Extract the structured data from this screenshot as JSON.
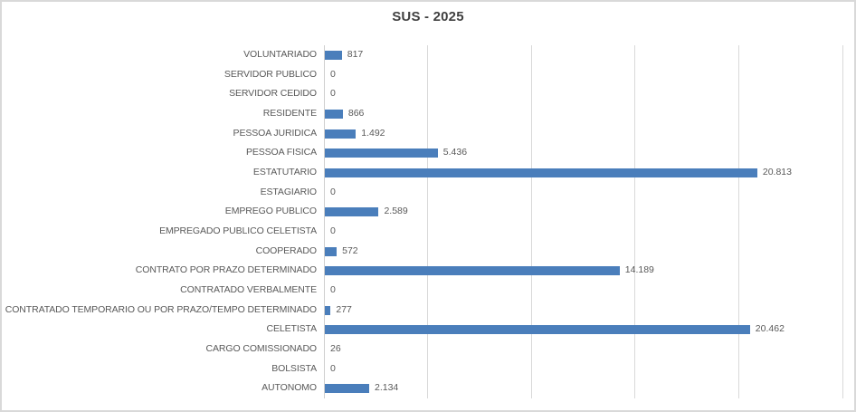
{
  "chart_data": {
    "type": "bar",
    "orientation": "horizontal",
    "title": "SUS - 2025",
    "categories": [
      "VOLUNTARIADO",
      "SERVIDOR PUBLICO",
      "SERVIDOR CEDIDO",
      "RESIDENTE",
      "PESSOA JURIDICA",
      "PESSOA FISICA",
      "ESTATUTARIO",
      "ESTAGIARIO",
      "EMPREGO PUBLICO",
      "EMPREGADO PUBLICO CELETISTA",
      "COOPERADO",
      "CONTRATO POR PRAZO DETERMINADO",
      "CONTRATADO VERBALMENTE",
      "CONTRATADO TEMPORARIO OU POR PRAZO/TEMPO DETERMINADO",
      "CELETISTA",
      "CARGO COMISSIONADO",
      "BOLSISTA",
      "AUTONOMO"
    ],
    "values": [
      817,
      0,
      0,
      866,
      1492,
      5436,
      20813,
      0,
      2589,
      0,
      572,
      14189,
      0,
      277,
      20462,
      26,
      0,
      2134
    ],
    "value_labels": [
      "817",
      "0",
      "0",
      "866",
      "1.492",
      "5.436",
      "20.813",
      "0",
      "2.589",
      "0",
      "572",
      "14.189",
      "0",
      "277",
      "20.462",
      "26",
      "0",
      "2.134"
    ],
    "xlabel": "",
    "ylabel": "",
    "xlim": [
      0,
      25000
    ],
    "gridline_step": 5000,
    "grid": true,
    "legend_position": "none",
    "axis_tick_labels_shown": false,
    "bar_color": "#4a7ebb",
    "gridline_color": "#d9d9d9",
    "label_color": "#595959",
    "title_color": "#404040",
    "background_color": "#ffffff",
    "border_color": "#d9d9d9"
  }
}
